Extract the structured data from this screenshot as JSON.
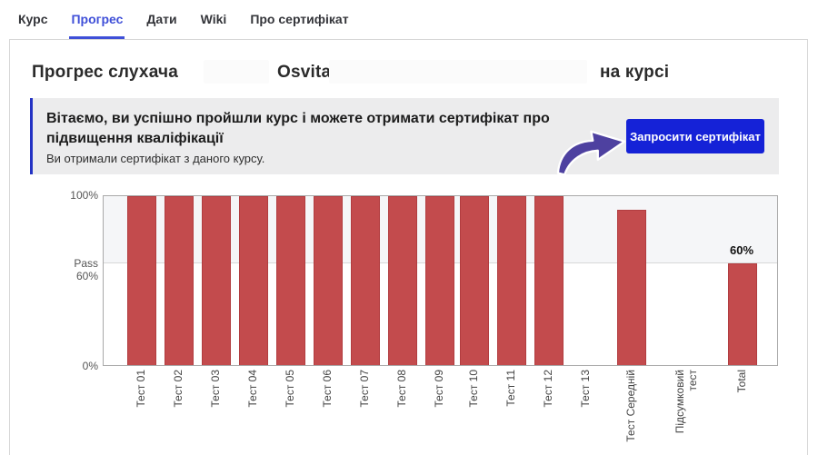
{
  "nav": {
    "tabs": [
      {
        "label": "Курс",
        "active": false
      },
      {
        "label": "Прогрес",
        "active": true
      },
      {
        "label": "Дати",
        "active": false
      },
      {
        "label": "Wiki",
        "active": false
      },
      {
        "label": "Про сертифікат",
        "active": false
      }
    ]
  },
  "header": {
    "title_part1": "Прогрес слухача",
    "title_part2": "Osvita",
    "title_part3": "на курсі"
  },
  "banner": {
    "title": "Вітаємо, ви успішно пройшли курс і можете отримати сертифікат про підвищення кваліфікації",
    "subtitle": "Ви отримали сертифікат з даного курсу.",
    "button_label": "Запросити сертифікат",
    "accent_color": "#2433c4",
    "button_color": "#1522d7",
    "arrow_icon_color": "#4e41a0"
  },
  "chart_data": {
    "type": "bar",
    "title": "",
    "xlabel": "",
    "ylabel": "",
    "ylim": [
      0,
      100
    ],
    "grid": false,
    "categories": [
      "Тест 01",
      "Тест 02",
      "Тест 03",
      "Тест 04",
      "Тест 05",
      "Тест 06",
      "Тест 07",
      "Тест 08",
      "Тест 09",
      "Тест 10",
      "Тест 11",
      "Тест 12",
      "Тест 13",
      "Тест Середній",
      "Підсумковий\nтест",
      "Total"
    ],
    "values": [
      100,
      100,
      100,
      100,
      100,
      100,
      100,
      100,
      100,
      100,
      100,
      100,
      0,
      92,
      0,
      60
    ],
    "yticks": [
      {
        "label": "100%",
        "value": 100
      },
      {
        "label": "Pass 60%",
        "value": 60
      },
      {
        "label": "0%",
        "value": 0
      }
    ],
    "pass_threshold": 60,
    "bar_color": "#c34b4d",
    "above_pass_band_color": "#f5f6f8",
    "annotations": [
      {
        "category": "Total",
        "text": "60%",
        "value": 60
      }
    ]
  }
}
